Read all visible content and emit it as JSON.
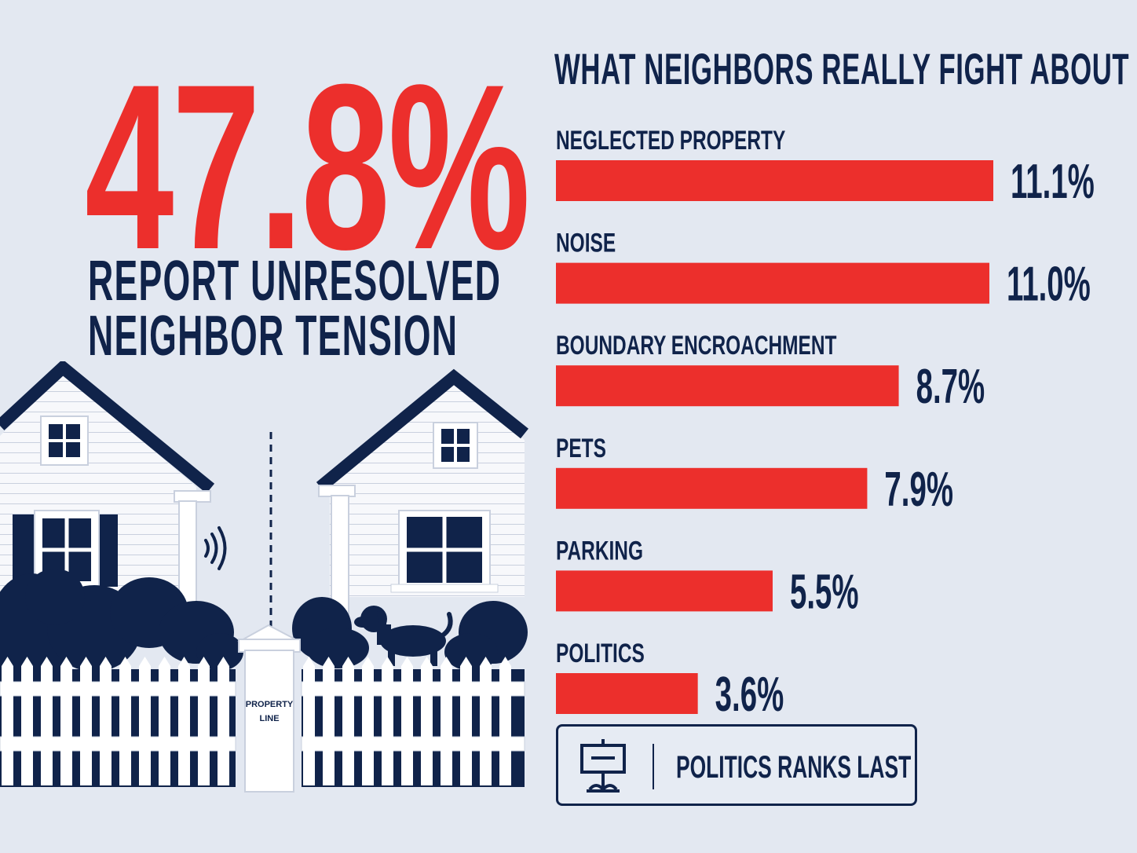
{
  "headline": {
    "stat": "47.8%",
    "line1": "REPORT UNRESOLVED",
    "line2": "NEIGHBOR TENSION"
  },
  "illustration": {
    "post_label_line1": "PROPERTY",
    "post_label_line2": "LINE"
  },
  "callout": {
    "text": "POLITICS RANKS LAST",
    "icon": "yard-sign-icon"
  },
  "colors": {
    "accent": "#ec2f2c",
    "navy": "#10234a",
    "background": "#e3e8f1"
  },
  "chart_data": {
    "type": "bar",
    "orientation": "horizontal",
    "title": "WHAT NEIGHBORS REALLY FIGHT ABOUT",
    "categories": [
      "NEGLECTED PROPERTY",
      "NOISE",
      "BOUNDARY ENCROACHMENT",
      "PETS",
      "PARKING",
      "POLITICS"
    ],
    "values": [
      11.1,
      11.0,
      8.7,
      7.9,
      5.5,
      3.6
    ],
    "value_labels": [
      "11.1%",
      "11.0%",
      "8.7%",
      "7.9%",
      "5.5%",
      "3.6%"
    ],
    "unit": "%",
    "xlim": [
      0,
      11.1
    ],
    "grid": false,
    "legend": "none",
    "bar_color": "#ec2f2c"
  }
}
